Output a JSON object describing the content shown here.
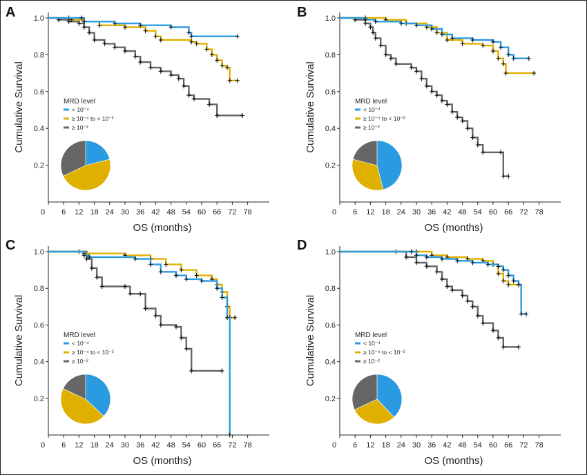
{
  "chart_data": [
    {
      "panel": "A",
      "type": "line",
      "xlabel": "OS (months)",
      "ylabel": "Cumulative Survival",
      "xticks": [
        "0",
        "6",
        "12",
        "18",
        "24",
        "30",
        "36",
        "42",
        "48",
        "54",
        "60",
        "66",
        "72",
        "78"
      ],
      "yticks": [
        "0.2",
        "0.4",
        "0.6",
        "0.8",
        "1.0"
      ],
      "xlim": [
        0,
        80
      ],
      "ylim": [
        0,
        1.03
      ],
      "legend": {
        "title": "MRD level",
        "entries": [
          "< 10⁻⁴",
          "≥ 10⁻⁴ to < 10⁻²",
          "≥ 10⁻²"
        ]
      },
      "series": [
        {
          "color": "#2a9be0",
          "points": [
            [
              0,
              1.0
            ],
            [
              13,
              1.0
            ],
            [
              14,
              0.98
            ],
            [
              26,
              0.97
            ],
            [
              36,
              0.96
            ],
            [
              48,
              0.95
            ],
            [
              55,
              0.92
            ],
            [
              56,
              0.9
            ],
            [
              74,
              0.9
            ]
          ]
        },
        {
          "color": "#e0b000",
          "points": [
            [
              0,
              1.0
            ],
            [
              8,
              1.0
            ],
            [
              9,
              0.99
            ],
            [
              14,
              0.98
            ],
            [
              20,
              0.96
            ],
            [
              30,
              0.95
            ],
            [
              38,
              0.93
            ],
            [
              42,
              0.9
            ],
            [
              44,
              0.88
            ],
            [
              56,
              0.87
            ],
            [
              58,
              0.86
            ],
            [
              62,
              0.83
            ],
            [
              64,
              0.8
            ],
            [
              66,
              0.77
            ],
            [
              68,
              0.74
            ],
            [
              70,
              0.73
            ],
            [
              71,
              0.66
            ],
            [
              74,
              0.66
            ]
          ]
        },
        {
          "color": "#666666",
          "points": [
            [
              0,
              1.0
            ],
            [
              4,
              0.99
            ],
            [
              8,
              0.98
            ],
            [
              12,
              0.97
            ],
            [
              14,
              0.95
            ],
            [
              16,
              0.92
            ],
            [
              18,
              0.88
            ],
            [
              22,
              0.86
            ],
            [
              26,
              0.84
            ],
            [
              30,
              0.82
            ],
            [
              34,
              0.79
            ],
            [
              36,
              0.76
            ],
            [
              40,
              0.73
            ],
            [
              44,
              0.71
            ],
            [
              48,
              0.69
            ],
            [
              51,
              0.67
            ],
            [
              53,
              0.63
            ],
            [
              55,
              0.58
            ],
            [
              57,
              0.56
            ],
            [
              63,
              0.53
            ],
            [
              66,
              0.47
            ],
            [
              76,
              0.47
            ]
          ]
        }
      ],
      "pie": [
        {
          "label": "< 10⁻⁴",
          "value": 21
        },
        {
          "label": "≥ 10⁻⁴ to < 10⁻²",
          "value": 47
        },
        {
          "label": "≥ 10⁻²",
          "value": 32
        }
      ]
    },
    {
      "panel": "B",
      "type": "line",
      "xlabel": "OS (months)",
      "ylabel": "Cumulative Survival",
      "xticks": [
        "0",
        "6",
        "12",
        "18",
        "24",
        "30",
        "36",
        "42",
        "48",
        "54",
        "60",
        "66",
        "72",
        "78"
      ],
      "yticks": [
        "0.2",
        "0.4",
        "0.6",
        "0.8",
        "1.0"
      ],
      "xlim": [
        0,
        80
      ],
      "ylim": [
        0,
        1.03
      ],
      "legend": {
        "title": "MRD level",
        "entries": [
          "< 10⁻⁴",
          "≥ 10⁻⁴ to < 10⁻²",
          "≥ 10⁻²"
        ]
      },
      "series": [
        {
          "color": "#2a9be0",
          "points": [
            [
              0,
              1.0
            ],
            [
              10,
              0.99
            ],
            [
              14,
              0.98
            ],
            [
              24,
              0.97
            ],
            [
              30,
              0.96
            ],
            [
              36,
              0.94
            ],
            [
              40,
              0.91
            ],
            [
              44,
              0.89
            ],
            [
              52,
              0.88
            ],
            [
              60,
              0.87
            ],
            [
              63,
              0.84
            ],
            [
              66,
              0.8
            ],
            [
              68,
              0.78
            ],
            [
              74,
              0.78
            ]
          ]
        },
        {
          "color": "#e0b000",
          "points": [
            [
              0,
              1.0
            ],
            [
              10,
              1.0
            ],
            [
              18,
              0.99
            ],
            [
              26,
              0.97
            ],
            [
              34,
              0.95
            ],
            [
              38,
              0.92
            ],
            [
              42,
              0.88
            ],
            [
              48,
              0.86
            ],
            [
              56,
              0.85
            ],
            [
              60,
              0.82
            ],
            [
              62,
              0.78
            ],
            [
              64,
              0.75
            ],
            [
              65,
              0.7
            ],
            [
              76,
              0.7
            ]
          ]
        },
        {
          "color": "#666666",
          "points": [
            [
              0,
              1.0
            ],
            [
              6,
              0.99
            ],
            [
              10,
              0.97
            ],
            [
              12,
              0.95
            ],
            [
              13,
              0.92
            ],
            [
              14,
              0.89
            ],
            [
              16,
              0.85
            ],
            [
              18,
              0.8
            ],
            [
              20,
              0.78
            ],
            [
              22,
              0.75
            ],
            [
              28,
              0.73
            ],
            [
              30,
              0.71
            ],
            [
              32,
              0.67
            ],
            [
              34,
              0.63
            ],
            [
              36,
              0.6
            ],
            [
              38,
              0.58
            ],
            [
              40,
              0.55
            ],
            [
              42,
              0.53
            ],
            [
              44,
              0.49
            ],
            [
              46,
              0.46
            ],
            [
              48,
              0.44
            ],
            [
              50,
              0.4
            ],
            [
              52,
              0.35
            ],
            [
              54,
              0.31
            ],
            [
              56,
              0.27
            ],
            [
              63,
              0.27
            ],
            [
              64,
              0.14
            ],
            [
              66,
              0.14
            ]
          ]
        }
      ],
      "pie": [
        {
          "label": "< 10⁻⁴",
          "value": 46
        },
        {
          "label": "≥ 10⁻⁴ to < 10⁻²",
          "value": 33
        },
        {
          "label": "≥ 10⁻²",
          "value": 21
        }
      ]
    },
    {
      "panel": "C",
      "type": "line",
      "xlabel": "OS (months)",
      "ylabel": "Cumulative Survival",
      "xticks": [
        "0",
        "6",
        "12",
        "18",
        "24",
        "30",
        "36",
        "42",
        "48",
        "54",
        "60",
        "66",
        "72",
        "78"
      ],
      "yticks": [
        "0.2",
        "0.4",
        "0.6",
        "0.8",
        "1.0"
      ],
      "xlim": [
        0,
        80
      ],
      "ylim": [
        0,
        1.03
      ],
      "legend": {
        "title": "MRD level",
        "entries": [
          "< 10⁻⁴",
          "≥ 10⁻⁴ to < 10⁻²",
          "≥ 10⁻²"
        ]
      },
      "series": [
        {
          "color": "#2a9be0",
          "points": [
            [
              0,
              1.0
            ],
            [
              14,
              0.98
            ],
            [
              16,
              0.97
            ],
            [
              34,
              0.96
            ],
            [
              40,
              0.93
            ],
            [
              44,
              0.89
            ],
            [
              50,
              0.87
            ],
            [
              54,
              0.85
            ],
            [
              60,
              0.84
            ],
            [
              66,
              0.8
            ],
            [
              68,
              0.75
            ],
            [
              70,
              0.64
            ],
            [
              71,
              0.0
            ]
          ]
        },
        {
          "color": "#e0b000",
          "points": [
            [
              0,
              1.0
            ],
            [
              14,
              0.99
            ],
            [
              30,
              0.98
            ],
            [
              40,
              0.96
            ],
            [
              46,
              0.93
            ],
            [
              52,
              0.9
            ],
            [
              58,
              0.87
            ],
            [
              64,
              0.85
            ],
            [
              66,
              0.82
            ],
            [
              68,
              0.78
            ],
            [
              70,
              0.7
            ],
            [
              71,
              0.64
            ],
            [
              73,
              0.64
            ]
          ]
        },
        {
          "color": "#666666",
          "points": [
            [
              0,
              1.0
            ],
            [
              12,
              1.0
            ],
            [
              15,
              0.96
            ],
            [
              17,
              0.91
            ],
            [
              19,
              0.86
            ],
            [
              21,
              0.81
            ],
            [
              30,
              0.81
            ],
            [
              32,
              0.77
            ],
            [
              36,
              0.77
            ],
            [
              38,
              0.69
            ],
            [
              42,
              0.65
            ],
            [
              44,
              0.6
            ],
            [
              50,
              0.59
            ],
            [
              52,
              0.53
            ],
            [
              54,
              0.47
            ],
            [
              56,
              0.35
            ],
            [
              68,
              0.35
            ]
          ]
        }
      ],
      "pie": [
        {
          "label": "< 10⁻⁴",
          "value": 37
        },
        {
          "label": "≥ 10⁻⁴ to < 10⁻²",
          "value": 45
        },
        {
          "label": "≥ 10⁻²",
          "value": 18
        }
      ]
    },
    {
      "panel": "D",
      "type": "line",
      "xlabel": "OS (months)",
      "ylabel": "Cumulative Survival",
      "xticks": [
        "0",
        "6",
        "12",
        "18",
        "24",
        "30",
        "36",
        "42",
        "48",
        "54",
        "60",
        "66",
        "72",
        "78"
      ],
      "yticks": [
        "0.2",
        "0.4",
        "0.6",
        "0.8",
        "1.0"
      ],
      "xlim": [
        0,
        80
      ],
      "ylim": [
        0,
        1.03
      ],
      "legend": {
        "title": "MRD level",
        "entries": [
          "< 10⁻⁴",
          "≥ 10⁻⁴ to < 10⁻²",
          "≥ 10⁻²"
        ]
      },
      "series": [
        {
          "color": "#2a9be0",
          "points": [
            [
              0,
              1.0
            ],
            [
              28,
              1.0
            ],
            [
              30,
              0.98
            ],
            [
              34,
              0.97
            ],
            [
              40,
              0.96
            ],
            [
              46,
              0.95
            ],
            [
              52,
              0.94
            ],
            [
              58,
              0.93
            ],
            [
              62,
              0.92
            ],
            [
              64,
              0.9
            ],
            [
              66,
              0.87
            ],
            [
              68,
              0.84
            ],
            [
              70,
              0.82
            ],
            [
              71,
              0.66
            ],
            [
              73,
              0.66
            ]
          ]
        },
        {
          "color": "#e0b000",
          "points": [
            [
              0,
              1.0
            ],
            [
              30,
              1.0
            ],
            [
              36,
              0.98
            ],
            [
              42,
              0.97
            ],
            [
              50,
              0.96
            ],
            [
              56,
              0.95
            ],
            [
              60,
              0.93
            ],
            [
              62,
              0.88
            ],
            [
              64,
              0.84
            ],
            [
              66,
              0.82
            ],
            [
              70,
              0.82
            ]
          ]
        },
        {
          "color": "#666666",
          "points": [
            [
              0,
              1.0
            ],
            [
              22,
              1.0
            ],
            [
              26,
              0.97
            ],
            [
              30,
              0.94
            ],
            [
              34,
              0.92
            ],
            [
              38,
              0.89
            ],
            [
              40,
              0.85
            ],
            [
              42,
              0.81
            ],
            [
              44,
              0.79
            ],
            [
              48,
              0.76
            ],
            [
              50,
              0.73
            ],
            [
              52,
              0.7
            ],
            [
              54,
              0.65
            ],
            [
              56,
              0.61
            ],
            [
              60,
              0.57
            ],
            [
              62,
              0.53
            ],
            [
              64,
              0.48
            ],
            [
              70,
              0.48
            ]
          ]
        }
      ],
      "pie": [
        {
          "label": "< 10⁻⁴",
          "value": 38
        },
        {
          "label": "≥ 10⁻⁴ to < 10⁻²",
          "value": 30
        },
        {
          "label": "≥ 10⁻²",
          "value": 32
        }
      ]
    }
  ]
}
